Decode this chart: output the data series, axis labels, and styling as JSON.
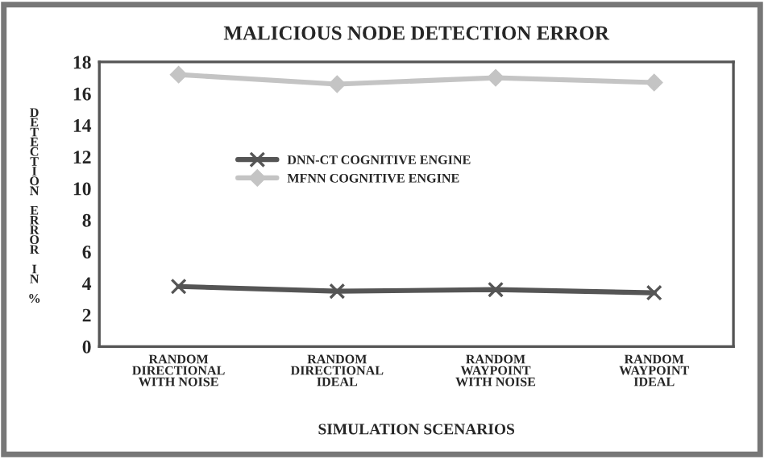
{
  "chart_data": {
    "type": "line",
    "title": "MALICIOUS NODE DETECTION ERROR",
    "xlabel": "SIMULATION SCENARIOS",
    "ylabel": "DETECTION ERROR IN %",
    "categories": [
      "RANDOM DIRECTIONAL WITH NOISE",
      "RANDOM DIRECTIONAL IDEAL",
      "RANDOM WAYPOINT WITH NOISE",
      "RANDOM WAYPOINT IDEAL"
    ],
    "series": [
      {
        "name": "DNN-CT COGNITIVE ENGINE",
        "color": "#555555",
        "marker": "cross",
        "values": [
          3.8,
          3.5,
          3.6,
          3.4
        ]
      },
      {
        "name": "MFNN COGNITIVE ENGINE",
        "color": "#c4c4c4",
        "marker": "diamond",
        "values": [
          17.2,
          16.6,
          17.0,
          16.7
        ]
      }
    ],
    "ylim": [
      0,
      18
    ],
    "yticks": [
      0,
      2,
      4,
      6,
      8,
      10,
      12,
      14,
      16,
      18
    ],
    "grid": false,
    "legend": "center left"
  }
}
